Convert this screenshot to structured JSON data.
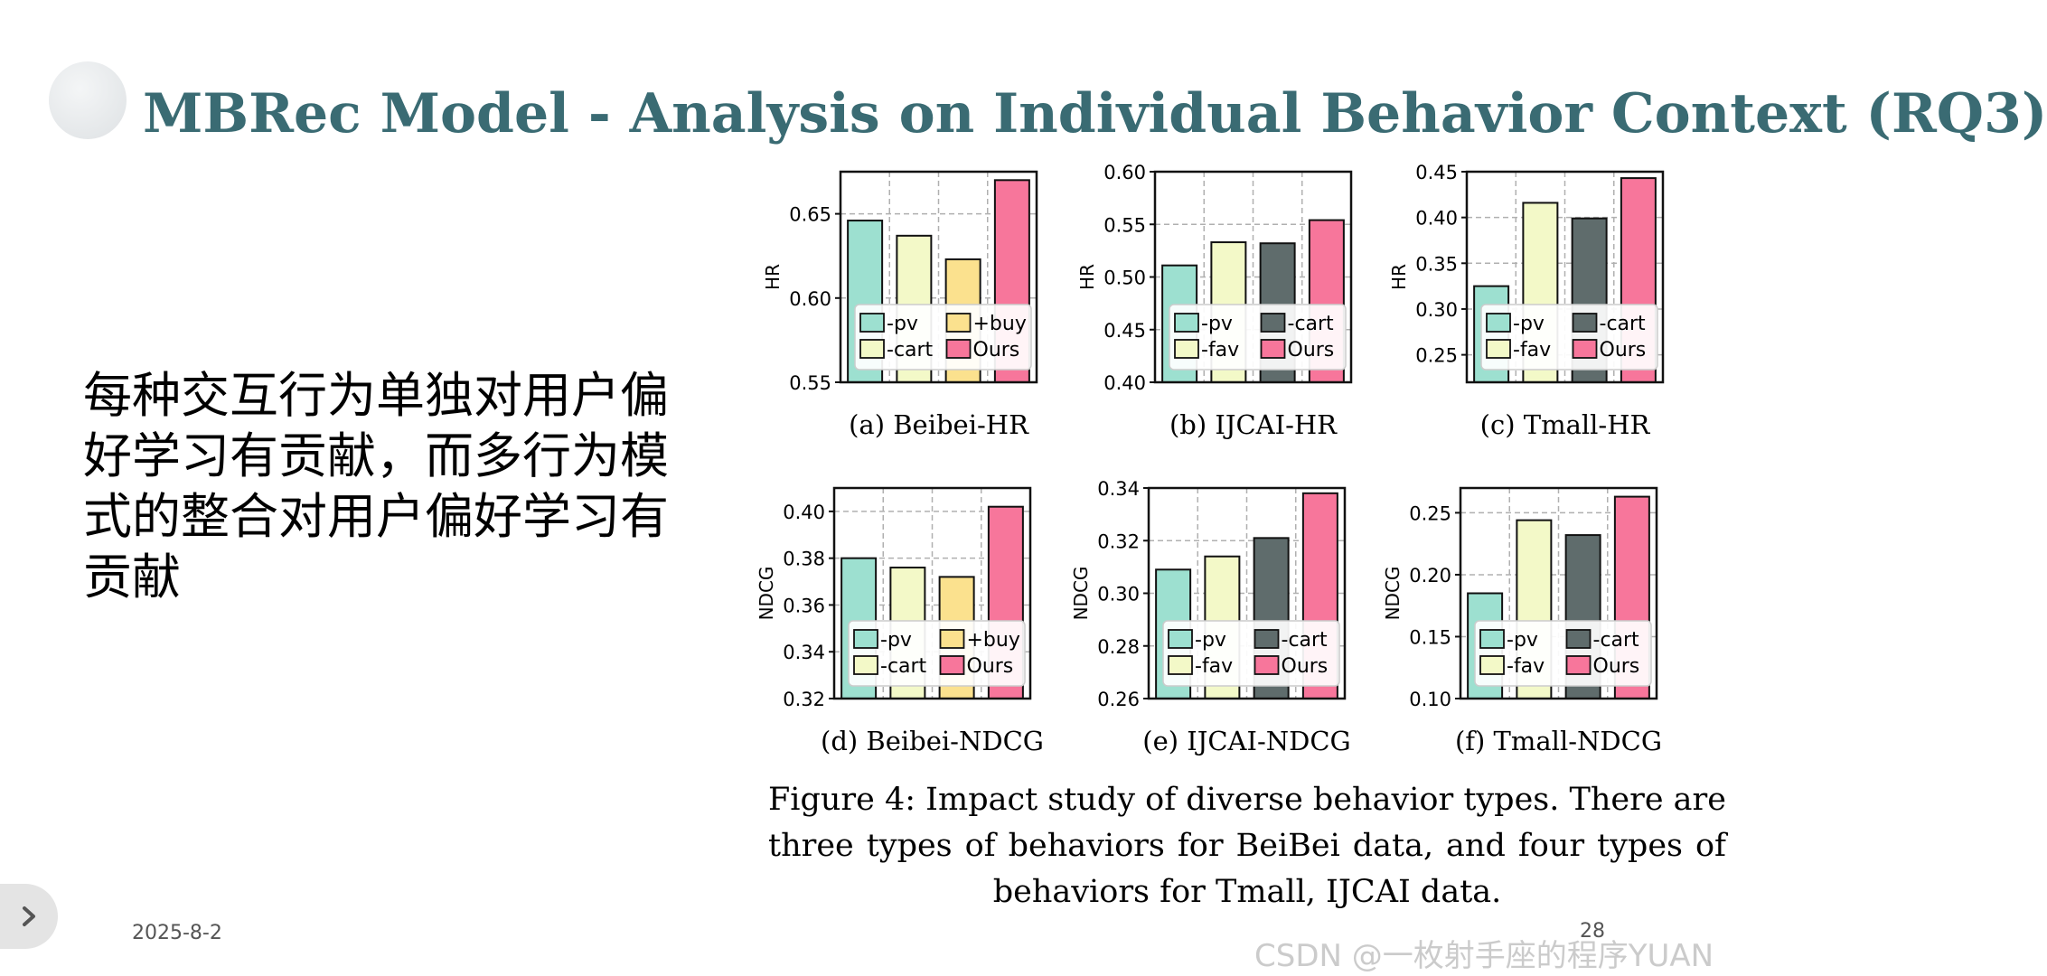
{
  "slide": {
    "title": "MBRec Model - Analysis on Individual Behavior Context (RQ3)",
    "body": "每种交互行为单独对用户偏好学习有贡献，而多行为模式的整合对用户偏好学习有贡献",
    "date": "2025-8-2",
    "page_number": "28",
    "watermark": "CSDN @一枚射手座的程序YUAN"
  },
  "figure": {
    "caption": "Figure 4: Impact study of diverse behavior types. There are three types of behaviors for BeiBei data, and four types of behaviors for Tmall, IJCAI data."
  },
  "colors": {
    "title": "#3a6b73",
    "pv": "#9de0d0",
    "buy": "#fbe18e",
    "cart_beibei": "#f3f9c8",
    "fav": "#f3f9c8",
    "cart_dark": "#5f6c6c",
    "ours": "#f7769b"
  },
  "chart_data": [
    {
      "type": "bar",
      "caption": "(a) Beibei-HR",
      "ylabel": "HR",
      "ylim": [
        0.55,
        0.675
      ],
      "yticks": [
        0.55,
        0.6,
        0.65
      ],
      "categories": [
        "-pv",
        "-cart",
        "+buy",
        "Ours"
      ],
      "values": [
        0.646,
        0.637,
        0.623,
        0.67
      ],
      "colors": [
        "#9de0d0",
        "#f3f9c8",
        "#fbe18e",
        "#f7769b"
      ],
      "legend_position": "lower-right",
      "grid": true
    },
    {
      "type": "bar",
      "caption": "(b) IJCAI-HR",
      "ylabel": "HR",
      "ylim": [
        0.4,
        0.6
      ],
      "yticks": [
        0.4,
        0.45,
        0.5,
        0.55,
        0.6
      ],
      "categories": [
        "-pv",
        "-fav",
        "-cart",
        "Ours"
      ],
      "values": [
        0.511,
        0.533,
        0.532,
        0.554
      ],
      "colors": [
        "#9de0d0",
        "#f3f9c8",
        "#5f6c6c",
        "#f7769b"
      ],
      "legend_position": "lower-right",
      "grid": true
    },
    {
      "type": "bar",
      "caption": "(c) Tmall-HR",
      "ylabel": "HR",
      "ylim": [
        0.22,
        0.45
      ],
      "yticks": [
        0.25,
        0.3,
        0.35,
        0.4,
        0.45
      ],
      "categories": [
        "-pv",
        "-fav",
        "-cart",
        "Ours"
      ],
      "values": [
        0.325,
        0.416,
        0.399,
        0.443
      ],
      "colors": [
        "#9de0d0",
        "#f3f9c8",
        "#5f6c6c",
        "#f7769b"
      ],
      "legend_position": "lower-right",
      "grid": true
    },
    {
      "type": "bar",
      "caption": "(d) Beibei-NDCG",
      "ylabel": "NDCG",
      "ylim": [
        0.32,
        0.41
      ],
      "yticks": [
        0.32,
        0.34,
        0.36,
        0.38,
        0.4
      ],
      "categories": [
        "-pv",
        "-cart",
        "+buy",
        "Ours"
      ],
      "values": [
        0.38,
        0.376,
        0.372,
        0.402
      ],
      "colors": [
        "#9de0d0",
        "#f3f9c8",
        "#fbe18e",
        "#f7769b"
      ],
      "legend_position": "lower-right",
      "grid": true
    },
    {
      "type": "bar",
      "caption": "(e) IJCAI-NDCG",
      "ylabel": "NDCG",
      "ylim": [
        0.26,
        0.34
      ],
      "yticks": [
        0.26,
        0.28,
        0.3,
        0.32,
        0.34
      ],
      "categories": [
        "-pv",
        "-fav",
        "-cart",
        "Ours"
      ],
      "values": [
        0.309,
        0.314,
        0.321,
        0.338
      ],
      "colors": [
        "#9de0d0",
        "#f3f9c8",
        "#5f6c6c",
        "#f7769b"
      ],
      "legend_position": "lower-right",
      "grid": true
    },
    {
      "type": "bar",
      "caption": "(f) Tmall-NDCG",
      "ylabel": "NDCG",
      "ylim": [
        0.1,
        0.27
      ],
      "yticks": [
        0.1,
        0.15,
        0.2,
        0.25
      ],
      "categories": [
        "-pv",
        "-fav",
        "-cart",
        "Ours"
      ],
      "values": [
        0.185,
        0.244,
        0.232,
        0.263
      ],
      "colors": [
        "#9de0d0",
        "#f3f9c8",
        "#5f6c6c",
        "#f7769b"
      ],
      "legend_position": "lower-right",
      "grid": true
    }
  ]
}
